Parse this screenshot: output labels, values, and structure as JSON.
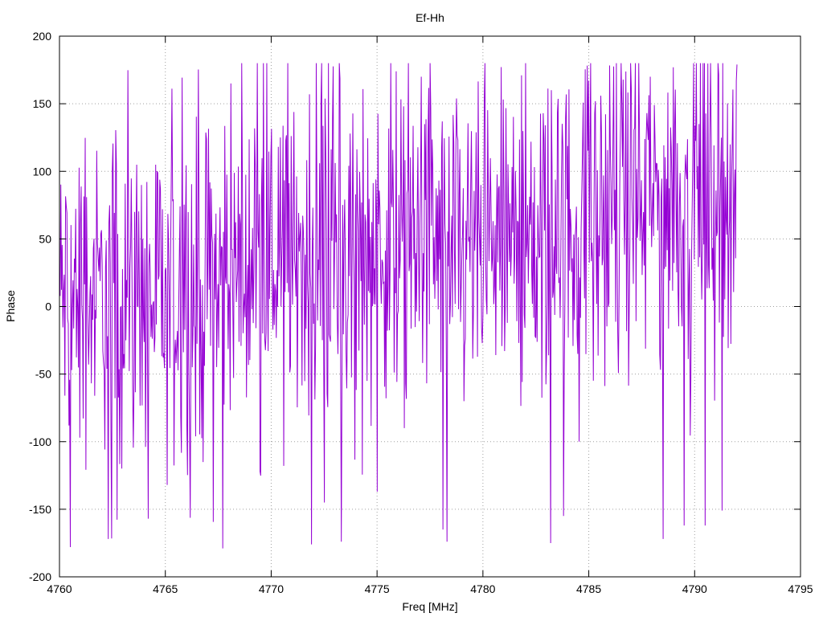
{
  "chart_data": {
    "type": "line",
    "title": "Ef-Hh",
    "xlabel": "Freq [MHz]",
    "ylabel": "Phase",
    "xlim": [
      4760,
      4795
    ],
    "ylim": [
      -200,
      200
    ],
    "xticks": [
      4760,
      4765,
      4770,
      4775,
      4780,
      4785,
      4790,
      4795
    ],
    "yticks": [
      -200,
      -150,
      -100,
      -50,
      0,
      50,
      100,
      150,
      200
    ],
    "grid": true,
    "legend": "none",
    "colors": {
      "series": "#9400d3",
      "grid": "#a0a0a0",
      "axes": "#000000"
    },
    "series": [
      {
        "x_start": 4760,
        "x_end": 4792,
        "x_step": 0.032,
        "point_count": 1001,
        "trend": {
          "x": [
            4760,
            4765,
            4770,
            4775,
            4780,
            4785,
            4790,
            4792
          ],
          "y": [
            5,
            8,
            30,
            45,
            40,
            65,
            85,
            90
          ]
        },
        "spread": 55,
        "clip": [
          -180,
          180
        ],
        "extremes": [
          {
            "x": 4760.5,
            "y": -178
          },
          {
            "x": 4762.3,
            "y": -172
          },
          {
            "x": 4764.2,
            "y": -157
          },
          {
            "x": 4765.1,
            "y": -132
          },
          {
            "x": 4767.7,
            "y": -179
          },
          {
            "x": 4768.1,
            "y": 165
          },
          {
            "x": 4771.9,
            "y": -176
          },
          {
            "x": 4771.8,
            "y": 157
          },
          {
            "x": 4772.5,
            "y": -145
          },
          {
            "x": 4773.3,
            "y": 166
          },
          {
            "x": 4773.3,
            "y": -174
          },
          {
            "x": 4775.0,
            "y": -137
          },
          {
            "x": 4775.9,
            "y": 174
          },
          {
            "x": 4777.1,
            "y": 170
          },
          {
            "x": 4778.1,
            "y": -165
          },
          {
            "x": 4778.3,
            "y": -174
          },
          {
            "x": 4783.2,
            "y": -175
          },
          {
            "x": 4783.8,
            "y": -155
          },
          {
            "x": 4785.0,
            "y": 167
          },
          {
            "x": 4787.9,
            "y": 170
          },
          {
            "x": 4788.5,
            "y": -172
          },
          {
            "x": 4789.0,
            "y": 177
          },
          {
            "x": 4789.5,
            "y": -162
          },
          {
            "x": 4790.5,
            "y": -162
          },
          {
            "x": 4791.3,
            "y": -151
          },
          {
            "x": 4792.0,
            "y": 179
          }
        ]
      }
    ]
  }
}
